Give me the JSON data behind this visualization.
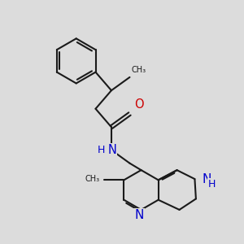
{
  "bg_color": "#dcdcdc",
  "bond_color": "#1a1a1a",
  "N_color": "#0000cc",
  "O_color": "#cc0000",
  "font_size": 9.5,
  "bond_lw": 1.5,
  "xlim": [
    -0.5,
    8.5
  ],
  "ylim": [
    1.0,
    10.5
  ]
}
